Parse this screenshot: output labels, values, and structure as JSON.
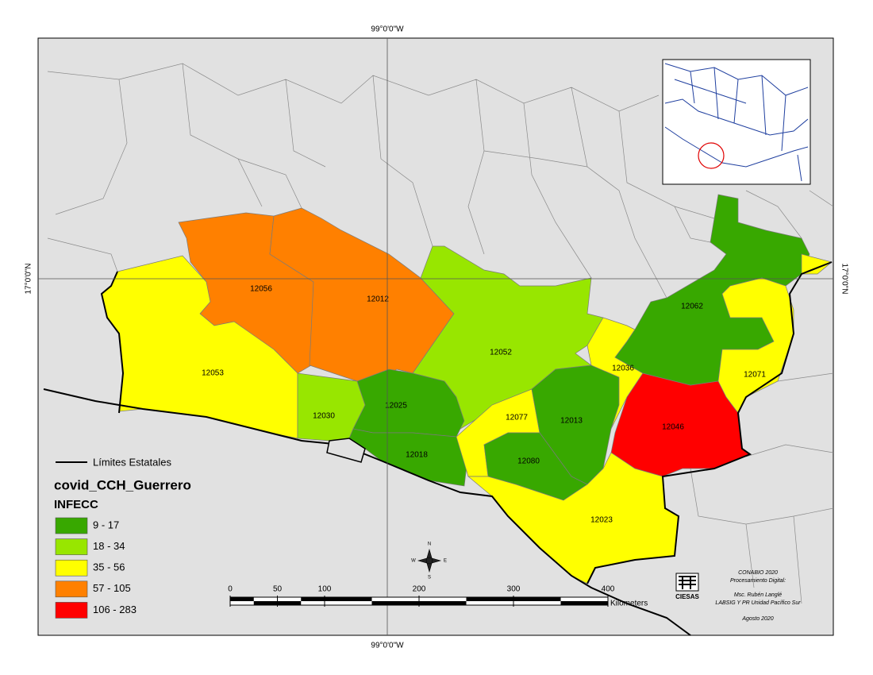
{
  "map": {
    "graticule": {
      "longitude": "99°0'0\"W",
      "latitude": "17°0'0\"N"
    },
    "regions": [
      {
        "label": "12056",
        "color": "#ff8000"
      },
      {
        "label": "12012",
        "color": "#ff8000"
      },
      {
        "label": "12053",
        "color": "#ffff00"
      },
      {
        "label": "12030",
        "color": "#98e600"
      },
      {
        "label": "12052",
        "color": "#98e600"
      },
      {
        "label": "12025",
        "color": "#38a800"
      },
      {
        "label": "12018",
        "color": "#38a800"
      },
      {
        "label": "12077",
        "color": "#ffff00"
      },
      {
        "label": "12013",
        "color": "#38a800"
      },
      {
        "label": "12080",
        "color": "#38a800"
      },
      {
        "label": "12036",
        "color": "#ffff00"
      },
      {
        "label": "12046",
        "color": "#ff0000"
      },
      {
        "label": "12062",
        "color": "#38a800"
      },
      {
        "label": "12071",
        "color": "#ffff00"
      },
      {
        "label": "12023",
        "color": "#ffff00"
      }
    ],
    "legend": {
      "boundary": "Límites Estatales",
      "layer": "covid_CCH_Guerrero",
      "field": "INFECC",
      "classes": [
        {
          "label": "9 - 17",
          "color": "#38a800"
        },
        {
          "label": "18 - 34",
          "color": "#98e600"
        },
        {
          "label": "35 - 56",
          "color": "#ffff00"
        },
        {
          "label": "57 - 105",
          "color": "#ff8000"
        },
        {
          "label": "106 - 283",
          "color": "#ff0000"
        }
      ]
    },
    "scale_bar": {
      "ticks": [
        0,
        50,
        100,
        200,
        300,
        400
      ],
      "unit": "Kilometers"
    },
    "compass": [
      "N",
      "S",
      "E",
      "W"
    ],
    "credits": [
      "CONABIO 2020",
      "Procesamiento Digital:",
      "Msc. Rubén Langlé",
      "LABSIG Y PR Unidad Pacífico Sur",
      "Agosto 2020"
    ],
    "logo": "CIESAS"
  }
}
